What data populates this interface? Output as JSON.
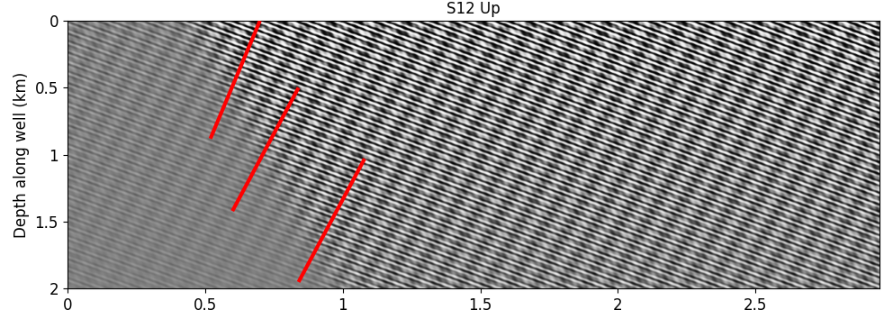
{
  "chart_data": {
    "type": "line",
    "title": "S12 Up",
    "y_label": "Depth along well (km)",
    "xlim": [
      0,
      2.95
    ],
    "ylim": [
      2,
      0
    ],
    "xticks": [
      0,
      0.5,
      1,
      1.5,
      2,
      2.5
    ],
    "yticks": [
      0,
      0.5,
      1,
      1.5,
      2
    ],
    "series": [
      {
        "color": "#ff0000",
        "x": [
          0.7,
          0.52
        ],
        "values": [
          0.0,
          0.88
        ]
      },
      {
        "color": "#ff0000",
        "x": [
          0.84,
          0.6
        ],
        "values": [
          0.5,
          1.42
        ]
      },
      {
        "color": "#ff0000",
        "x": [
          1.08,
          0.84
        ],
        "values": [
          1.03,
          1.95
        ]
      }
    ]
  }
}
